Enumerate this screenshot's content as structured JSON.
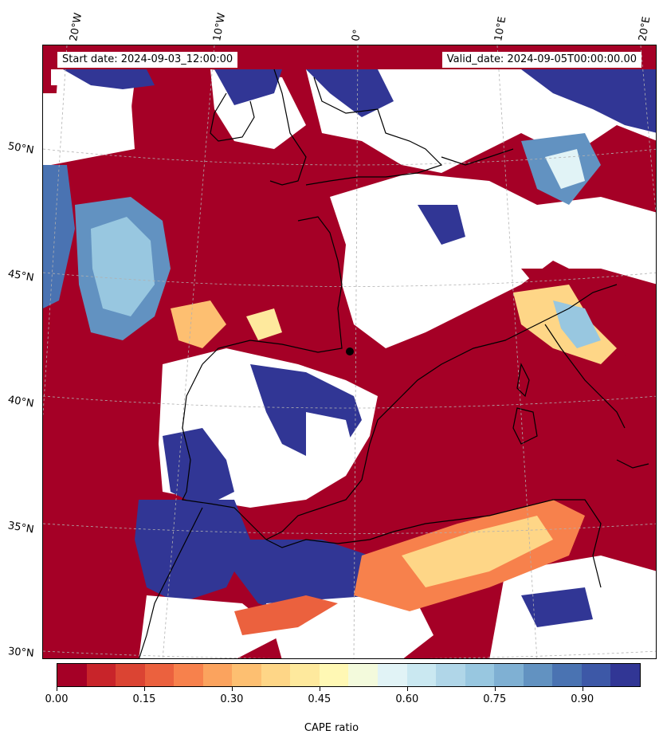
{
  "header": {
    "start_date": "Start date: 2024-09-03_12:00:00",
    "valid_date": "Valid_date: 2024-09-05T00:00:00.00"
  },
  "graticule": {
    "longitude_labels": [
      "20°W",
      "10°W",
      "0°",
      "10°E",
      "20°E"
    ],
    "latitude_labels": [
      "50°N",
      "45°N",
      "40°N",
      "35°N",
      "30°N"
    ]
  },
  "colorbar": {
    "label": "CAPE ratio",
    "min": 0.0,
    "max": 1.0,
    "step": 0.05,
    "tick_labels": [
      "0.00",
      "0.15",
      "0.30",
      "0.45",
      "0.60",
      "0.75",
      "0.90"
    ],
    "tick_values": [
      0.0,
      0.15,
      0.3,
      0.45,
      0.6,
      0.75,
      0.9
    ],
    "colors": [
      "#a50026",
      "#c8242a",
      "#db4433",
      "#eb613e",
      "#f7814c",
      "#fba35e",
      "#fdbf71",
      "#fed687",
      "#fee99d",
      "#fff8b4",
      "#f3fadc",
      "#e1f3f6",
      "#cae8f1",
      "#b0d6e8",
      "#98c7e0",
      "#7fb0d3",
      "#6292c1",
      "#4a73b2",
      "#3d58a7",
      "#313695"
    ]
  },
  "legend_colors": {
    "coastline": "#000000",
    "grid": "#b0b0b0",
    "low": "#a50026",
    "high": "#313695",
    "mask": "#ffffff"
  }
}
